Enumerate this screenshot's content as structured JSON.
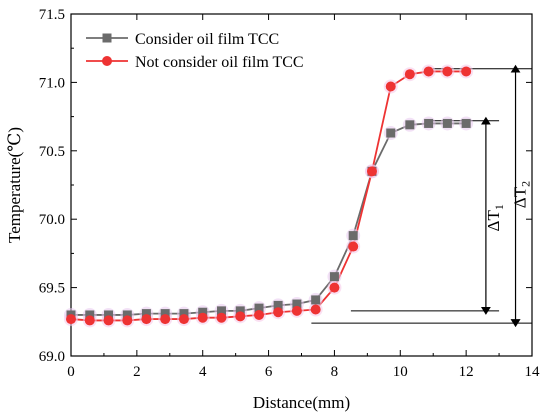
{
  "chart_data": {
    "type": "line",
    "xlabel": "Distance(mm)",
    "ylabel": "Temperature(℃)",
    "xlim": [
      0,
      14
    ],
    "ylim": [
      69.0,
      71.5
    ],
    "xticks": [
      0,
      2,
      4,
      6,
      8,
      10,
      12,
      14
    ],
    "yticks": [
      69.0,
      69.5,
      70.0,
      70.5,
      71.0,
      71.5
    ],
    "xtick_labels": [
      "0",
      "2",
      "4",
      "6",
      "8",
      "10",
      "12",
      "14"
    ],
    "ytick_labels": [
      "69.0",
      "69.5",
      "70.0",
      "70.5",
      "71.0",
      "71.5"
    ],
    "grid": false,
    "legend_position": "top-left",
    "series": [
      {
        "name": "Consider oil film TCC",
        "marker": "square",
        "color": "#6b6b6b",
        "x": [
          0,
          0.57,
          1.14,
          1.71,
          2.29,
          2.86,
          3.43,
          4.0,
          4.57,
          5.14,
          5.71,
          6.29,
          6.86,
          7.43,
          8.0,
          8.57,
          9.14,
          9.71,
          10.29,
          10.86,
          11.43,
          12.0
        ],
        "y": [
          69.3,
          69.3,
          69.3,
          69.3,
          69.31,
          69.31,
          69.31,
          69.32,
          69.33,
          69.33,
          69.35,
          69.37,
          69.38,
          69.41,
          69.58,
          69.88,
          70.35,
          70.63,
          70.69,
          70.7,
          70.7,
          70.7
        ]
      },
      {
        "name": "Not consider oil film TCC",
        "marker": "circle",
        "color": "#ee3333",
        "x": [
          0,
          0.57,
          1.14,
          1.71,
          2.29,
          2.86,
          3.43,
          4.0,
          4.57,
          5.14,
          5.71,
          6.29,
          6.86,
          7.43,
          8.0,
          8.57,
          9.14,
          9.71,
          10.29,
          10.86,
          11.43,
          12.0
        ],
        "y": [
          69.27,
          69.26,
          69.26,
          69.26,
          69.27,
          69.27,
          69.27,
          69.28,
          69.28,
          69.29,
          69.3,
          69.32,
          69.33,
          69.34,
          69.5,
          69.8,
          70.35,
          70.97,
          71.06,
          71.08,
          71.08,
          71.08
        ]
      }
    ],
    "annotations": [
      {
        "text": "ΔT",
        "subscript": "1",
        "x": 13.0,
        "y": 70.01
      },
      {
        "text": "ΔT",
        "subscript": "2",
        "x": 13.8,
        "y": 70.18
      }
    ],
    "reference_lines": [
      {
        "x_start": 10.9,
        "x_end": 13.0,
        "y": 70.72
      },
      {
        "x_start": 11.0,
        "x_end": 14.0,
        "y": 71.1
      },
      {
        "x_start": 8.5,
        "x_end": 13.0,
        "y": 69.33
      },
      {
        "x_start": 7.3,
        "x_end": 14.0,
        "y": 69.24
      }
    ],
    "dimension_arrows": [
      {
        "x": 12.6,
        "y_from": 69.33,
        "y_to": 70.72
      },
      {
        "x": 13.5,
        "y_from": 69.24,
        "y_to": 71.1
      }
    ]
  }
}
